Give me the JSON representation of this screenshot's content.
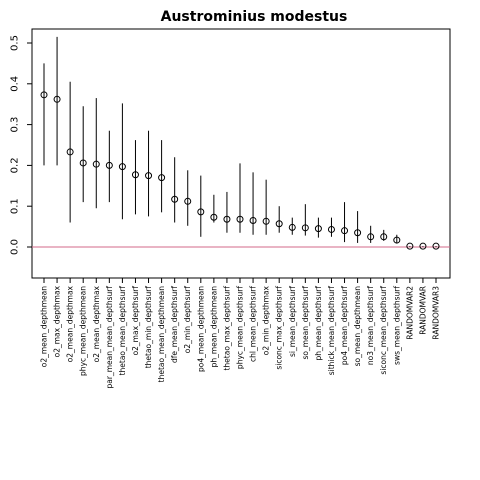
{
  "chart_data": {
    "type": "scatter",
    "title": "Austrominius modestus",
    "xlabel": "",
    "ylabel": "",
    "ylim": [
      -0.07,
      0.53
    ],
    "yticks": [
      "0.0",
      "0.1",
      "0.2",
      "0.3",
      "0.4",
      "0.5"
    ],
    "ytick_values": [
      0,
      0.1,
      0.2,
      0.3,
      0.4,
      0.5
    ],
    "reference_line": {
      "y": 0,
      "color": "#d36a8a"
    },
    "marker": "open-circle",
    "grid": false,
    "categories": [
      "o2_mean_depthmean",
      "o2_max_depthmax",
      "o2_mean_depthmax",
      "phyc_mean_depthmean",
      "o2_mean_depthmax",
      "par_mean_mean_depthsurf",
      "thetao_mean_depthsurf",
      "o2_max_depthsurf",
      "thetao_min_depthsurf",
      "thetao_mean_depthmean",
      "dfe_mean_depthsurf",
      "o2_min_depthsurf",
      "po4_mean_depthmean",
      "ph_mean_depthmean",
      "thetao_max_depthsurf",
      "phyc_mean_depthsurf",
      "chl_mean_depthsurf",
      "o2_min_depthmax",
      "siconc_max_depthsurf",
      "si_mean_depthsurf",
      "so_mean_depthsurf",
      "ph_mean_depthsurf",
      "sithick_mean_depthsurf",
      "po4_mean_depthsurf",
      "so_mean_depthmean",
      "no3_mean_depthsurf",
      "siconc_mean_depthsurf",
      "sws_mean_depthsurf",
      "RANDOMVAR2",
      "RANDOMVAR",
      "RANDOMVAR3"
    ],
    "series": [
      {
        "values": [
          0.373,
          0.362,
          0.233,
          0.206,
          0.203,
          0.2,
          0.197,
          0.177,
          0.175,
          0.17,
          0.117,
          0.112,
          0.086,
          0.073,
          0.068,
          0.068,
          0.065,
          0.063,
          0.057,
          0.048,
          0.047,
          0.045,
          0.043,
          0.04,
          0.035,
          0.025,
          0.025,
          0.017,
          0.002,
          0.002,
          0.002
        ],
        "lower": [
          0.2,
          0.2,
          0.06,
          0.11,
          0.095,
          0.11,
          0.068,
          0.08,
          0.075,
          0.085,
          0.06,
          0.052,
          0.025,
          0.06,
          0.035,
          0.035,
          0.03,
          0.03,
          0.035,
          0.03,
          0.028,
          0.023,
          0.025,
          0.012,
          0.01,
          0.01,
          0.015,
          0.01,
          0.0,
          0.0,
          0.0
        ],
        "upper": [
          0.45,
          0.515,
          0.405,
          0.345,
          0.365,
          0.285,
          0.352,
          0.262,
          0.285,
          0.262,
          0.22,
          0.188,
          0.175,
          0.128,
          0.135,
          0.205,
          0.183,
          0.165,
          0.1,
          0.072,
          0.105,
          0.072,
          0.072,
          0.11,
          0.088,
          0.052,
          0.042,
          0.03,
          0.002,
          0.002,
          0.002
        ]
      }
    ]
  }
}
